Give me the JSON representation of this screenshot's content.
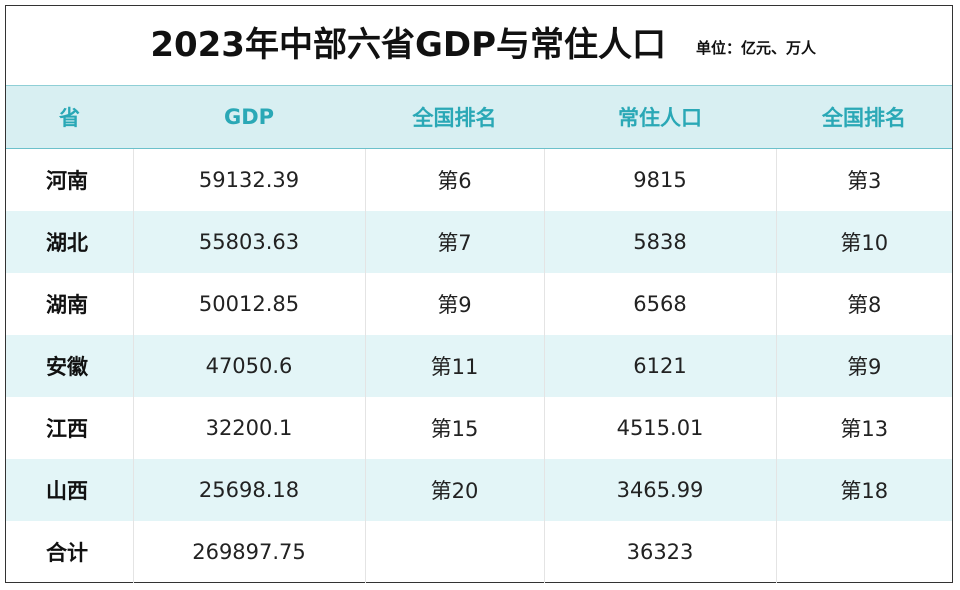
{
  "header": {
    "title": "2023年中部六省GDP与常住人口",
    "unit": "单位：亿元、万人"
  },
  "table": {
    "columns": [
      "省",
      "GDP",
      "全国排名",
      "常住人口",
      "全国排名"
    ],
    "rows": [
      [
        "河南",
        "59132.39",
        "第6",
        "9815",
        "第3"
      ],
      [
        "湖北",
        "55803.63",
        "第7",
        "5838",
        "第10"
      ],
      [
        "湖南",
        "50012.85",
        "第9",
        "6568",
        "第8"
      ],
      [
        "安徽",
        "47050.6",
        "第11",
        "6121",
        "第9"
      ],
      [
        "江西",
        "32200.1",
        "第15",
        "4515.01",
        "第13"
      ],
      [
        "山西",
        "25698.18",
        "第20",
        "3465.99",
        "第18"
      ]
    ],
    "total": {
      "label": "合计",
      "gdp": "269897.75",
      "population": "36323"
    }
  }
}
